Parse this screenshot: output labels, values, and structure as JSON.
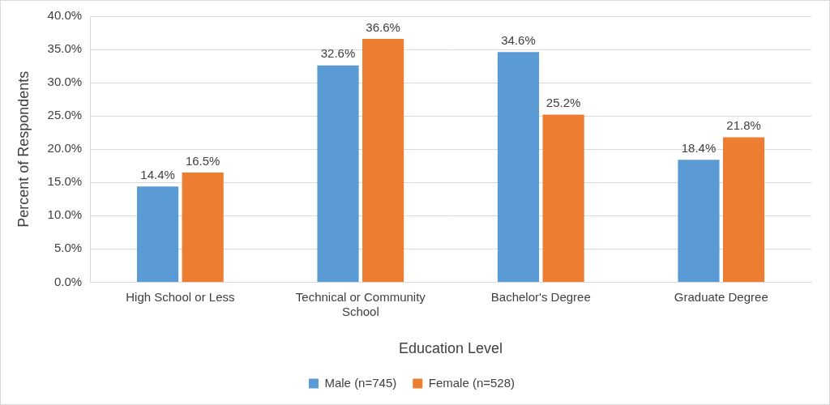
{
  "chart_data": {
    "type": "bar",
    "x_label": "Education Level",
    "y_label": "Percent of Respondents",
    "categories": [
      "High School or Less",
      "Technical or Community School",
      "Bachelor's Degree",
      "Graduate Degree"
    ],
    "series": [
      {
        "name": "Male (n=745)",
        "color": "#5b9bd5",
        "values": [
          14.4,
          32.6,
          34.6,
          18.4
        ],
        "value_labels": [
          "14.4%",
          "32.6%",
          "34.6%",
          "18.4%"
        ]
      },
      {
        "name": "Female (n=528)",
        "color": "#ed7d31",
        "values": [
          16.5,
          36.6,
          25.2,
          21.8
        ],
        "value_labels": [
          "16.5%",
          "36.6%",
          "25.2%",
          "21.8%"
        ]
      }
    ],
    "ylim": [
      0,
      40
    ],
    "yticks": [
      {
        "value": 0,
        "label": "0.0%"
      },
      {
        "value": 5,
        "label": "5.0%"
      },
      {
        "value": 10,
        "label": "10.0%"
      },
      {
        "value": 15,
        "label": "15.0%"
      },
      {
        "value": 20,
        "label": "20.0%"
      },
      {
        "value": 25,
        "label": "25.0%"
      },
      {
        "value": 30,
        "label": "30.0%"
      },
      {
        "value": 35,
        "label": "35.0%"
      },
      {
        "value": 40,
        "label": "40.0%"
      }
    ],
    "grid": true,
    "legend": "bottom",
    "data_labels": true
  }
}
